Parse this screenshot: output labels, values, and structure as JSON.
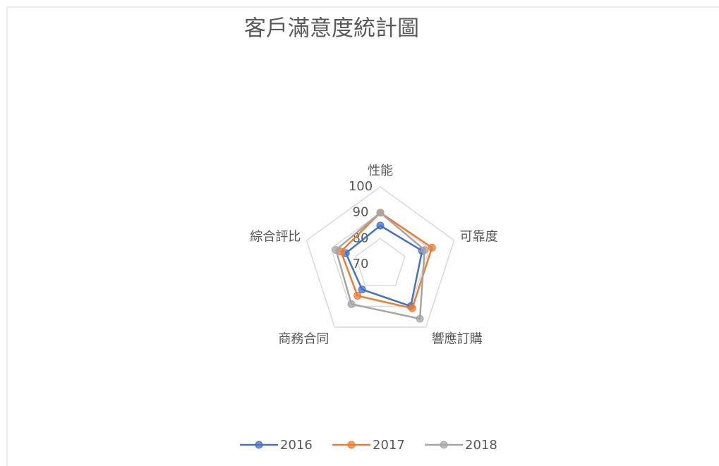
{
  "chart_data": {
    "type": "radar",
    "title": "客戶滿意度統計圖",
    "categories": [
      "性能",
      "可靠度",
      "響應訂購",
      "商務合同",
      "綜合評比"
    ],
    "series": [
      {
        "name": "2016",
        "color": "#4472c4",
        "values": [
          85,
          87,
          90,
          82,
          84
        ]
      },
      {
        "name": "2017",
        "color": "#ed7d31",
        "values": [
          90,
          91,
          91,
          85,
          86
        ]
      },
      {
        "name": "2018",
        "color": "#a5a5a5",
        "values": [
          90,
          88,
          96,
          89,
          88
        ]
      }
    ],
    "ylim": [
      70,
      100
    ],
    "yticks": [
      70,
      80,
      90,
      100
    ],
    "grid": true,
    "legend": "bottom"
  }
}
